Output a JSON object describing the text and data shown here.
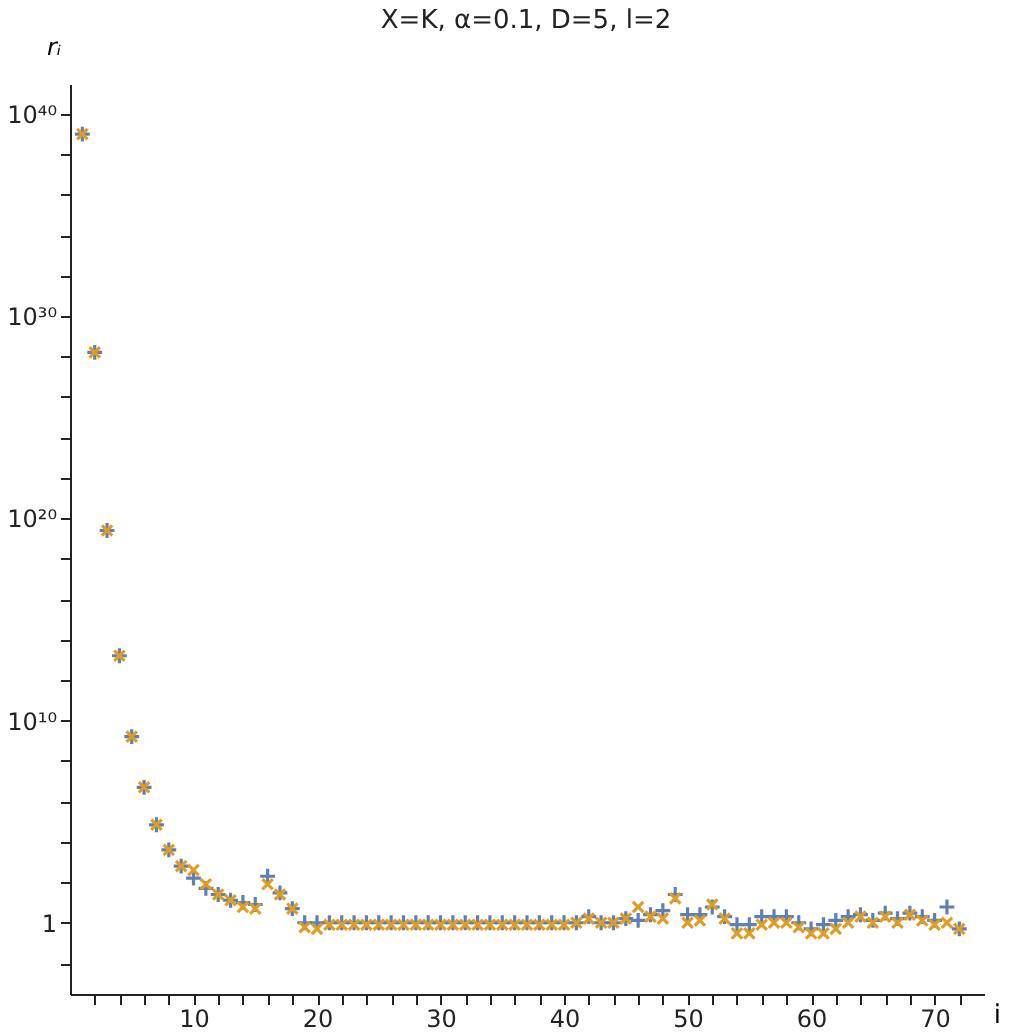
{
  "chart_data": {
    "type": "scatter",
    "title": "X=K, α=0.1, D=5, l=2",
    "xlabel": "i",
    "ylabel": "rᵢ",
    "log": "y",
    "grid": false,
    "legend": false,
    "x": [
      1,
      2,
      3,
      4,
      5,
      6,
      7,
      8,
      9,
      10,
      11,
      12,
      13,
      14,
      15,
      16,
      17,
      18,
      19,
      20,
      21,
      22,
      23,
      24,
      25,
      26,
      27,
      28,
      29,
      30,
      31,
      32,
      33,
      34,
      35,
      36,
      37,
      38,
      39,
      40,
      41,
      42,
      43,
      44,
      45,
      46,
      47,
      48,
      49,
      50,
      51,
      52,
      53,
      54,
      55,
      56,
      57,
      58,
      59,
      60,
      61,
      62,
      63,
      64,
      65,
      66,
      67,
      68,
      69,
      70,
      71,
      72
    ],
    "series": [
      {
        "color": "#5e81b5",
        "marker": "cross",
        "values": [
          1e+39,
          1.6e+28,
          2.5e+19,
          16000000000000.0,
          1600000000.0,
          5000000.0,
          70000.0,
          4000,
          630,
          160,
          50,
          25,
          13,
          10,
          8,
          200,
          30,
          5,
          1,
          1,
          1,
          1,
          1,
          1,
          1,
          1,
          1,
          1,
          1,
          1,
          1,
          1,
          1,
          1,
          1,
          1,
          1,
          1,
          1,
          1,
          1,
          2,
          1,
          1,
          1.6,
          1.3,
          2.5,
          4,
          25,
          2.5,
          2.5,
          6,
          2,
          0.8,
          0.8,
          2,
          2,
          2,
          1,
          0.5,
          0.8,
          1.3,
          2,
          2.5,
          1.3,
          3,
          1.6,
          3,
          2,
          1.3,
          6,
          0.5
        ]
      },
      {
        "color": "#e19c24",
        "marker": "x",
        "values": [
          1e+39,
          1.6e+28,
          2.5e+19,
          16000000000000.0,
          1600000000.0,
          5000000.0,
          70000.0,
          4000,
          630,
          400,
          80,
          25,
          13,
          6,
          5,
          80,
          25,
          5,
          0.6,
          0.5,
          0.8,
          0.8,
          0.8,
          0.8,
          0.8,
          0.8,
          0.8,
          0.8,
          0.8,
          0.8,
          0.8,
          0.8,
          0.8,
          0.8,
          0.8,
          0.8,
          0.8,
          0.8,
          0.8,
          0.8,
          1,
          1.6,
          1,
          1,
          1.6,
          6,
          2,
          1.6,
          16,
          1,
          1.3,
          8,
          1.6,
          0.3,
          0.3,
          0.8,
          1,
          1,
          0.6,
          0.3,
          0.3,
          0.5,
          1,
          2,
          1,
          2,
          1,
          2.5,
          1.3,
          0.8,
          1,
          0.5
        ]
      }
    ],
    "xlim": [
      0,
      74
    ],
    "xticks": [
      {
        "value": 2,
        "label": null
      },
      {
        "value": 4,
        "label": null
      },
      {
        "value": 6,
        "label": null
      },
      {
        "value": 8,
        "label": null
      },
      10,
      {
        "value": 12,
        "label": null
      },
      {
        "value": 14,
        "label": null
      },
      {
        "value": 16,
        "label": null
      },
      {
        "value": 18,
        "label": null
      },
      20,
      {
        "value": 22,
        "label": null
      },
      {
        "value": 24,
        "label": null
      },
      {
        "value": 26,
        "label": null
      },
      {
        "value": 28,
        "label": null
      },
      30,
      {
        "value": 32,
        "label": null
      },
      {
        "value": 34,
        "label": null
      },
      {
        "value": 36,
        "label": null
      },
      {
        "value": 38,
        "label": null
      },
      40,
      {
        "value": 42,
        "label": null
      },
      {
        "value": 44,
        "label": null
      },
      {
        "value": 46,
        "label": null
      },
      {
        "value": 48,
        "label": null
      },
      50,
      {
        "value": 52,
        "label": null
      },
      {
        "value": 54,
        "label": null
      },
      {
        "value": 56,
        "label": null
      },
      {
        "value": 58,
        "label": null
      },
      60,
      {
        "value": 62,
        "label": null
      },
      {
        "value": 64,
        "label": null
      },
      {
        "value": 66,
        "label": null
      },
      {
        "value": 68,
        "label": null
      },
      70,
      {
        "value": 72,
        "label": null
      }
    ],
    "ylim": [
      0.0003,
      3e+41
    ],
    "yticks": [
      {
        "value": 0.01,
        "label": null
      },
      1,
      {
        "value": 100,
        "label": null
      },
      {
        "value": 10000.0,
        "label": null
      },
      {
        "value": 1000000.0,
        "label": null
      },
      {
        "value": 100000000.0,
        "label": null
      },
      {
        "value": 10000000000.0,
        "label": "10¹⁰"
      },
      {
        "value": 1000000000000.0,
        "label": null
      },
      {
        "value": 100000000000000.0,
        "label": null
      },
      {
        "value": 1e+16,
        "label": null
      },
      {
        "value": 1e+18,
        "label": null
      },
      {
        "value": 1e+20,
        "label": "10²⁰"
      },
      {
        "value": 1e+22,
        "label": null
      },
      {
        "value": 1e+24,
        "label": null
      },
      {
        "value": 1e+26,
        "label": null
      },
      {
        "value": 1e+28,
        "label": null
      },
      {
        "value": 1e+30,
        "label": "10³⁰"
      },
      {
        "value": 1e+32,
        "label": null
      },
      {
        "value": 1e+34,
        "label": null
      },
      {
        "value": 1e+36,
        "label": null
      },
      {
        "value": 1e+38,
        "label": null
      },
      {
        "value": 1e+40,
        "label": "10⁴⁰"
      }
    ]
  }
}
